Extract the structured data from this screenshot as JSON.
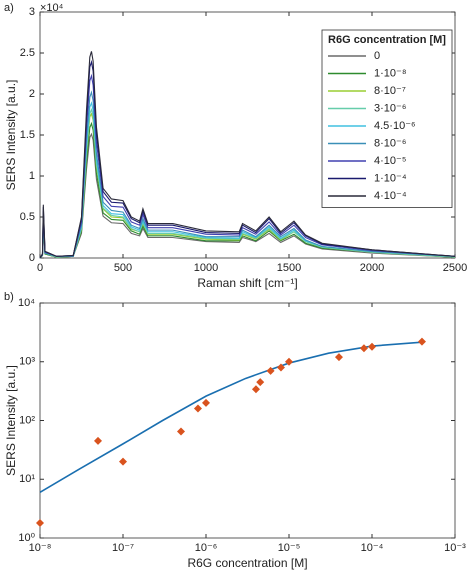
{
  "chart_data": [
    {
      "type": "line",
      "panel_label": "a)",
      "xlabel": "Raman shift [cm⁻¹]",
      "ylabel": "SERS Intensity [a.u.]",
      "y_multiplier": "×10⁴",
      "legend_title": "R6G concentration [M]",
      "legend": "upper right",
      "xlim": [
        0,
        2500
      ],
      "xticks": [
        0,
        500,
        1000,
        1500,
        2000,
        2500
      ],
      "ylim": [
        0,
        3
      ],
      "yticks": [
        0,
        0.5,
        1,
        1.5,
        2,
        2.5,
        3
      ],
      "x": [
        0,
        15,
        20,
        30,
        100,
        200,
        250,
        280,
        300,
        310,
        320,
        340,
        380,
        430,
        500,
        550,
        600,
        620,
        650,
        800,
        1000,
        1200,
        1220,
        1300,
        1380,
        1450,
        1530,
        1600,
        1700,
        2000,
        2500
      ],
      "series": [
        {
          "name": "0",
          "color": "#6a6a6a",
          "values": [
            0,
            0.03,
            0.39,
            0.05,
            0.01,
            0.02,
            0.3,
            1.08,
            1.47,
            1.51,
            1.44,
            0.96,
            0.51,
            0.43,
            0.42,
            0.3,
            0.27,
            0.36,
            0.25,
            0.25,
            0.2,
            0.19,
            0.25,
            0.2,
            0.3,
            0.19,
            0.27,
            0.17,
            0.11,
            0.06,
            0.01
          ]
        },
        {
          "name": "1·10⁻⁸",
          "color": "#2e8b2e",
          "values": [
            0,
            0.03,
            0.42,
            0.05,
            0.01,
            0.02,
            0.33,
            1.17,
            1.59,
            1.64,
            1.56,
            1.04,
            0.55,
            0.47,
            0.46,
            0.33,
            0.29,
            0.39,
            0.27,
            0.27,
            0.21,
            0.21,
            0.27,
            0.21,
            0.33,
            0.21,
            0.29,
            0.18,
            0.12,
            0.07,
            0.01
          ]
        },
        {
          "name": "8·10⁻⁷",
          "color": "#9acd32",
          "values": [
            0,
            0.04,
            0.46,
            0.06,
            0.01,
            0.02,
            0.35,
            1.26,
            1.72,
            1.76,
            1.68,
            1.12,
            0.6,
            0.5,
            0.49,
            0.35,
            0.32,
            0.42,
            0.29,
            0.29,
            0.23,
            0.22,
            0.29,
            0.23,
            0.35,
            0.22,
            0.32,
            0.2,
            0.13,
            0.07,
            0.01
          ]
        },
        {
          "name": "3·10⁻⁶",
          "color": "#66cdaa",
          "values": [
            0,
            0.04,
            0.47,
            0.06,
            0.01,
            0.02,
            0.36,
            1.3,
            1.76,
            1.81,
            1.73,
            1.15,
            0.61,
            0.52,
            0.5,
            0.36,
            0.32,
            0.43,
            0.3,
            0.3,
            0.24,
            0.23,
            0.3,
            0.24,
            0.36,
            0.23,
            0.32,
            0.2,
            0.13,
            0.07,
            0.01
          ]
        },
        {
          "name": "4.5·10⁻⁶",
          "color": "#40c0e0",
          "values": [
            0,
            0.04,
            0.49,
            0.06,
            0.02,
            0.02,
            0.38,
            1.35,
            1.84,
            1.89,
            1.8,
            1.2,
            0.64,
            0.54,
            0.53,
            0.38,
            0.34,
            0.45,
            0.32,
            0.32,
            0.25,
            0.24,
            0.32,
            0.25,
            0.38,
            0.24,
            0.34,
            0.21,
            0.14,
            0.08,
            0.02
          ]
        },
        {
          "name": "8·10⁻⁶",
          "color": "#3a8fb7",
          "values": [
            0,
            0.04,
            0.52,
            0.06,
            0.02,
            0.02,
            0.4,
            1.44,
            1.96,
            2.02,
            1.92,
            1.28,
            0.68,
            0.58,
            0.56,
            0.4,
            0.36,
            0.48,
            0.34,
            0.34,
            0.26,
            0.26,
            0.34,
            0.26,
            0.4,
            0.26,
            0.36,
            0.22,
            0.14,
            0.08,
            0.02
          ]
        },
        {
          "name": "4·10⁻⁵",
          "color": "#4040b0",
          "values": [
            0,
            0.04,
            0.57,
            0.07,
            0.02,
            0.03,
            0.44,
            1.58,
            2.16,
            2.22,
            2.11,
            1.41,
            0.75,
            0.63,
            0.62,
            0.44,
            0.4,
            0.53,
            0.37,
            0.37,
            0.29,
            0.28,
            0.37,
            0.29,
            0.44,
            0.28,
            0.4,
            0.25,
            0.16,
            0.09,
            0.02
          ]
        },
        {
          "name": "1·10⁻⁴",
          "color": "#1a1a6e",
          "values": [
            0,
            0.05,
            0.62,
            0.08,
            0.02,
            0.03,
            0.48,
            1.71,
            2.33,
            2.39,
            2.28,
            1.52,
            0.81,
            0.68,
            0.67,
            0.48,
            0.43,
            0.57,
            0.4,
            0.4,
            0.31,
            0.3,
            0.4,
            0.31,
            0.48,
            0.3,
            0.43,
            0.27,
            0.17,
            0.1,
            0.02
          ]
        },
        {
          "name": "4·10⁻⁴",
          "color": "#2a2a3a",
          "values": [
            0,
            0.05,
            0.65,
            0.08,
            0.02,
            0.03,
            0.5,
            1.8,
            2.45,
            2.52,
            2.4,
            1.6,
            0.85,
            0.72,
            0.7,
            0.5,
            0.45,
            0.6,
            0.42,
            0.42,
            0.33,
            0.32,
            0.42,
            0.33,
            0.5,
            0.32,
            0.45,
            0.28,
            0.18,
            0.1,
            0.02
          ]
        }
      ]
    },
    {
      "type": "scatter",
      "panel_label": "b)",
      "xlabel": "R6G concentration [M]",
      "ylabel": "SERS Intensity [a.u.]",
      "xscale": "log",
      "yscale": "log",
      "xlim": [
        1e-08,
        0.001
      ],
      "xticks": [
        {
          "value": 1e-08,
          "label": "10⁻⁸"
        },
        {
          "value": 1e-07,
          "label": "10⁻⁷"
        },
        {
          "value": 1e-06,
          "label": "10⁻⁶"
        },
        {
          "value": 1e-05,
          "label": "10⁻⁵"
        },
        {
          "value": 0.0001,
          "label": "10⁻⁴"
        },
        {
          "value": 0.001,
          "label": "10⁻³"
        }
      ],
      "ylim": [
        1,
        10000
      ],
      "yticks": [
        {
          "value": 1,
          "label": "10⁰"
        },
        {
          "value": 10,
          "label": "10¹"
        },
        {
          "value": 100,
          "label": "10²"
        },
        {
          "value": 1000,
          "label": "10³"
        },
        {
          "value": 10000,
          "label": "10⁴"
        }
      ],
      "points": {
        "color": "#d9531e",
        "x": [
          1e-08,
          5e-08,
          1e-07,
          5e-07,
          8e-07,
          1e-06,
          4e-06,
          4.5e-06,
          6e-06,
          8e-06,
          1e-05,
          4e-05,
          8e-05,
          0.0001,
          0.0004
        ],
        "values": [
          1.8,
          45,
          20,
          65,
          160,
          200,
          340,
          450,
          700,
          800,
          1000,
          1200,
          1700,
          1800,
          2200
        ]
      },
      "fit": {
        "color": "#1a6fb0",
        "x": [
          1e-08,
          3e-08,
          1e-07,
          3e-07,
          1e-06,
          3e-06,
          1e-05,
          3e-05,
          0.0001,
          0.0004
        ],
        "values": [
          6,
          15,
          40,
          100,
          260,
          520,
          950,
          1400,
          1850,
          2150
        ]
      }
    }
  ]
}
